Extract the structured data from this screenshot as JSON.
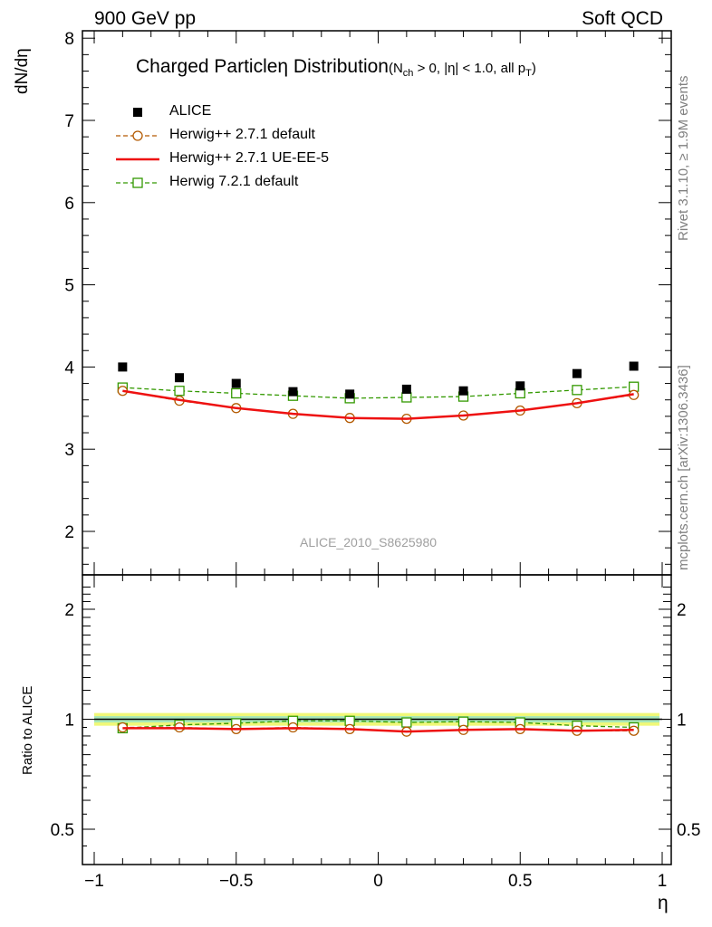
{
  "header": {
    "left": "900 GeV pp",
    "right": "Soft QCD"
  },
  "title": {
    "main": "Charged Particleη Distribution",
    "sub_prefix": "(N",
    "sub_index": "ch",
    "sub_middle": " > 0, |η| < 1.0, all p",
    "sub_index2": "T",
    "sub_suffix": ")"
  },
  "side_labels": {
    "rivet": "Rivet 3.1.10, ≥ 1.9M events",
    "mcplots": "mcplots.cern.ch [arXiv:1306.3436]"
  },
  "analysis_id": "ALICE_2010_S8625980",
  "colors": {
    "data": "#000000",
    "herwigpp_default": "#b35900",
    "herwigpp_ueee5": "#ee1111",
    "herwig7_default": "#339900",
    "band_outer": "#f0f878",
    "band_inner": "#a8e8b8"
  },
  "chart_data": [
    {
      "type": "line",
      "xlabel": "",
      "ylabel": "dN/dη",
      "xlim": [
        -1,
        1
      ],
      "ylim": [
        1.55,
        8.1
      ],
      "x_ticks": [
        -1,
        -0.5,
        0,
        0.5,
        1
      ],
      "y_ticks": [
        2,
        3,
        4,
        5,
        6,
        7,
        8
      ],
      "x": [
        -0.9,
        -0.7,
        -0.5,
        -0.3,
        -0.1,
        0.1,
        0.3,
        0.5,
        0.7,
        0.9
      ],
      "series": [
        {
          "name": "ALICE",
          "style": "square-filled",
          "values": [
            4.0,
            3.87,
            3.8,
            3.7,
            3.67,
            3.73,
            3.71,
            3.77,
            3.92,
            4.01
          ]
        },
        {
          "name": "Herwig++ 2.7.1 default",
          "style": "circle-open-dashed",
          "values": [
            3.71,
            3.59,
            3.5,
            3.43,
            3.38,
            3.37,
            3.41,
            3.47,
            3.56,
            3.66
          ]
        },
        {
          "name": "Herwig++ 2.7.1 UE-EE-5",
          "style": "solid-line",
          "values": [
            3.71,
            3.6,
            3.5,
            3.43,
            3.38,
            3.37,
            3.41,
            3.47,
            3.56,
            3.67
          ]
        },
        {
          "name": "Herwig 7.2.1 default",
          "style": "square-open-dashed",
          "values": [
            3.75,
            3.71,
            3.68,
            3.65,
            3.62,
            3.63,
            3.64,
            3.68,
            3.72,
            3.76
          ]
        }
      ],
      "legend": "top-left"
    },
    {
      "type": "line",
      "xlabel": "η",
      "ylabel": "Ratio to ALICE",
      "xlim": [
        -1,
        1
      ],
      "ylog": true,
      "ylim": [
        0.4,
        2.35
      ],
      "x_ticks": [
        -1,
        -0.5,
        0,
        0.5,
        1
      ],
      "x_tick_labels": [
        "−1",
        "−0.5",
        "0",
        "0.5",
        "1"
      ],
      "y_ticks": [
        0.5,
        1,
        2
      ],
      "x": [
        -0.9,
        -0.7,
        -0.5,
        -0.3,
        -0.1,
        0.1,
        0.3,
        0.5,
        0.7,
        0.9
      ],
      "band": {
        "center": 1.0,
        "inner": 0.02,
        "outer": 0.04
      },
      "series": [
        {
          "name": "Herwig++ 2.7.1 default",
          "style": "circle-open-dashed",
          "values": [
            0.95,
            0.95,
            0.94,
            0.95,
            0.94,
            0.925,
            0.935,
            0.94,
            0.93,
            0.93
          ]
        },
        {
          "name": "Herwig++ 2.7.1 UE-EE-5",
          "style": "solid-line",
          "values": [
            0.945,
            0.945,
            0.94,
            0.945,
            0.94,
            0.925,
            0.935,
            0.94,
            0.93,
            0.935
          ]
        },
        {
          "name": "Herwig 7.2.1 default",
          "style": "square-open-dashed",
          "values": [
            0.945,
            0.965,
            0.975,
            0.99,
            0.99,
            0.98,
            0.985,
            0.98,
            0.96,
            0.95
          ]
        }
      ]
    }
  ]
}
